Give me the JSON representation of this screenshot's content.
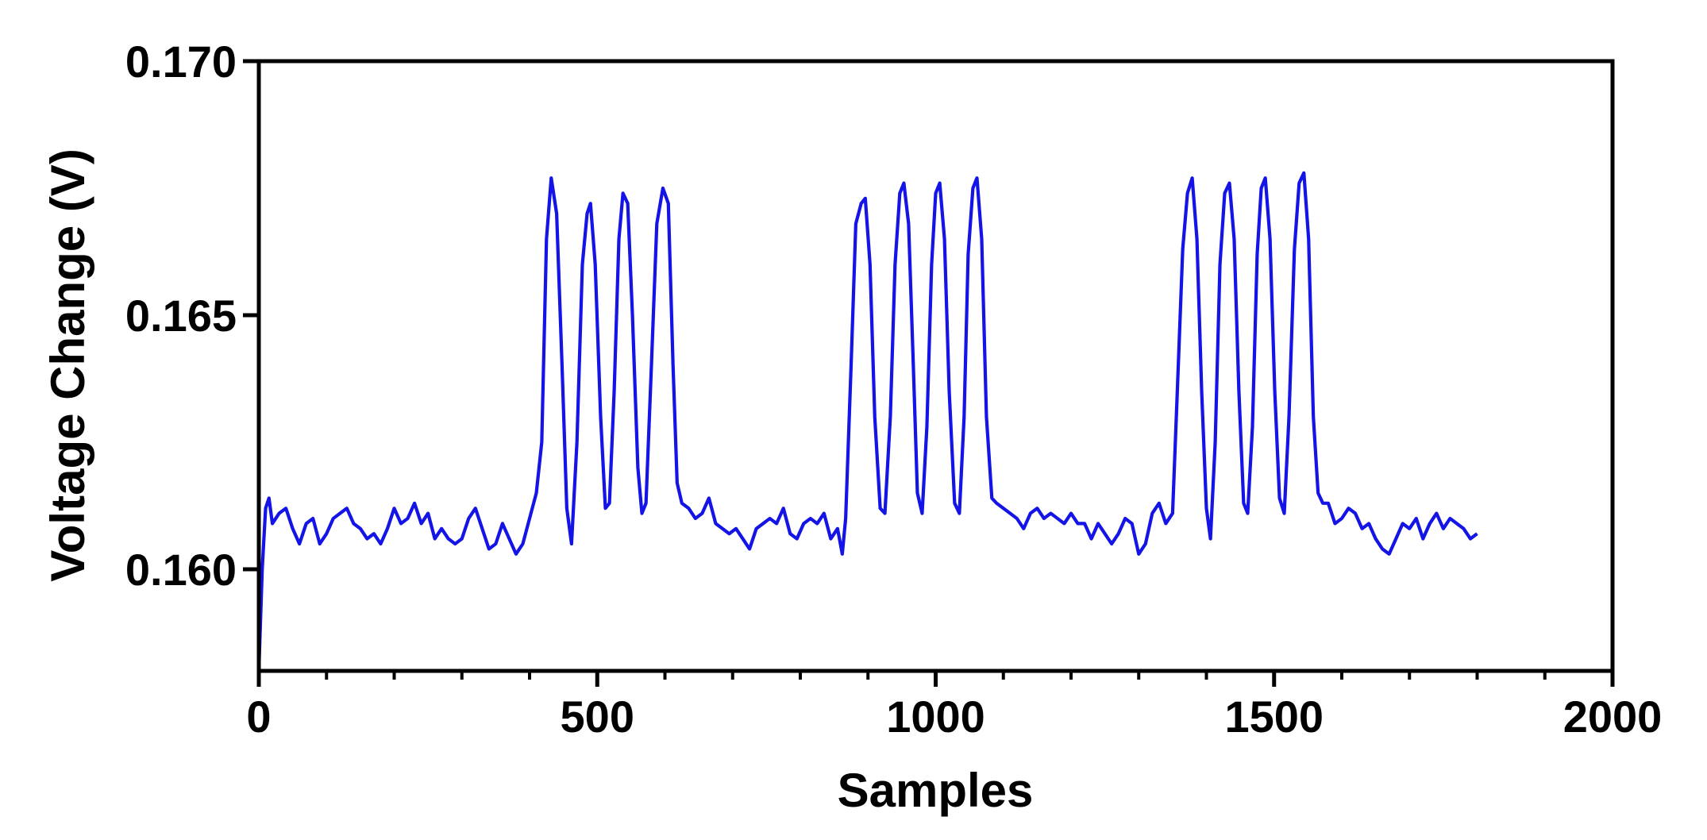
{
  "chart_data": {
    "type": "line",
    "xlabel": "Samples",
    "ylabel": "Voltage Change (V)",
    "xlim": [
      0,
      2000
    ],
    "xticks": [
      0,
      500,
      1000,
      1500,
      2000
    ],
    "xminorticks": [
      100,
      200,
      300,
      400,
      600,
      700,
      800,
      900,
      1100,
      1200,
      1300,
      1400,
      1600,
      1700,
      1800,
      1900
    ],
    "ylim": [
      0.158,
      0.17
    ],
    "yticks": [
      {
        "value": 0.16,
        "label": "0.160"
      },
      {
        "value": 0.165,
        "label": "0.165"
      },
      {
        "value": 0.17,
        "label": "0.170"
      }
    ],
    "grid": false,
    "series": [
      {
        "color": "#1414e6",
        "x": [
          0,
          5,
          10,
          15,
          20,
          30,
          40,
          50,
          60,
          70,
          80,
          90,
          100,
          110,
          120,
          130,
          140,
          150,
          160,
          170,
          180,
          190,
          200,
          210,
          220,
          230,
          240,
          250,
          260,
          270,
          280,
          290,
          300,
          310,
          320,
          330,
          340,
          350,
          360,
          370,
          380,
          390,
          400,
          410,
          418,
          425,
          432,
          440,
          448,
          455,
          462,
          470,
          478,
          485,
          490,
          497,
          505,
          512,
          518,
          525,
          532,
          538,
          545,
          552,
          560,
          566,
          572,
          580,
          588,
          597,
          605,
          612,
          618,
          625,
          635,
          645,
          655,
          665,
          675,
          685,
          695,
          705,
          715,
          725,
          735,
          745,
          755,
          765,
          775,
          785,
          795,
          805,
          815,
          825,
          835,
          845,
          855,
          862,
          867,
          875,
          882,
          890,
          896,
          903,
          910,
          918,
          925,
          933,
          940,
          947,
          953,
          960,
          967,
          973,
          980,
          987,
          994,
          1000,
          1006,
          1013,
          1020,
          1028,
          1035,
          1042,
          1048,
          1055,
          1061,
          1068,
          1075,
          1083,
          1090,
          1100,
          1110,
          1120,
          1130,
          1140,
          1150,
          1160,
          1170,
          1180,
          1190,
          1200,
          1210,
          1220,
          1230,
          1240,
          1250,
          1260,
          1270,
          1280,
          1290,
          1300,
          1310,
          1320,
          1330,
          1340,
          1350,
          1357,
          1365,
          1372,
          1379,
          1386,
          1393,
          1400,
          1406,
          1413,
          1420,
          1427,
          1434,
          1441,
          1448,
          1455,
          1461,
          1468,
          1475,
          1481,
          1487,
          1494,
          1501,
          1508,
          1515,
          1522,
          1530,
          1537,
          1544,
          1551,
          1558,
          1565,
          1572,
          1580,
          1590,
          1600,
          1610,
          1620,
          1630,
          1640,
          1650,
          1660,
          1670,
          1680,
          1690,
          1700,
          1710,
          1720,
          1730,
          1740,
          1750,
          1760,
          1770,
          1780,
          1790,
          1800
        ],
        "values": [
          0.158,
          0.16,
          0.1612,
          0.1614,
          0.1609,
          0.1611,
          0.1612,
          0.1608,
          0.1605,
          0.1609,
          0.161,
          0.1605,
          0.1607,
          0.161,
          0.1611,
          0.1612,
          0.1609,
          0.1608,
          0.1606,
          0.1607,
          0.1605,
          0.1608,
          0.1612,
          0.1609,
          0.161,
          0.1613,
          0.1609,
          0.1611,
          0.1606,
          0.1608,
          0.1606,
          0.1605,
          0.1606,
          0.161,
          0.1612,
          0.1608,
          0.1604,
          0.1605,
          0.1609,
          0.1606,
          0.1603,
          0.1605,
          0.161,
          0.1615,
          0.1625,
          0.1665,
          0.1677,
          0.167,
          0.164,
          0.1612,
          0.1605,
          0.1625,
          0.166,
          0.167,
          0.1672,
          0.166,
          0.163,
          0.1612,
          0.1613,
          0.1635,
          0.1665,
          0.1674,
          0.1672,
          0.165,
          0.162,
          0.1611,
          0.1613,
          0.164,
          0.1668,
          0.1675,
          0.1672,
          0.164,
          0.1617,
          0.1613,
          0.1612,
          0.161,
          0.1611,
          0.1614,
          0.1609,
          0.1608,
          0.1607,
          0.1608,
          0.1606,
          0.1604,
          0.1608,
          0.1609,
          0.161,
          0.1609,
          0.1612,
          0.1607,
          0.1606,
          0.1609,
          0.161,
          0.1609,
          0.1611,
          0.1606,
          0.1608,
          0.1603,
          0.161,
          0.164,
          0.1668,
          0.1672,
          0.1673,
          0.166,
          0.163,
          0.1612,
          0.1611,
          0.163,
          0.166,
          0.1674,
          0.1676,
          0.1668,
          0.164,
          0.1615,
          0.1611,
          0.1628,
          0.166,
          0.1674,
          0.1676,
          0.1665,
          0.1635,
          0.1613,
          0.1611,
          0.163,
          0.1662,
          0.1675,
          0.1677,
          0.1665,
          0.163,
          0.1614,
          0.1613,
          0.1612,
          0.1611,
          0.161,
          0.1608,
          0.1611,
          0.1612,
          0.161,
          0.1611,
          0.161,
          0.1609,
          0.1611,
          0.1609,
          0.1609,
          0.1606,
          0.1609,
          0.1607,
          0.1605,
          0.1607,
          0.161,
          0.1609,
          0.1603,
          0.1605,
          0.1611,
          0.1613,
          0.1609,
          0.1611,
          0.1635,
          0.1663,
          0.1674,
          0.1677,
          0.1665,
          0.1635,
          0.1612,
          0.1606,
          0.1625,
          0.166,
          0.1674,
          0.1676,
          0.1665,
          0.1635,
          0.1613,
          0.1611,
          0.1628,
          0.1662,
          0.1675,
          0.1677,
          0.1665,
          0.1635,
          0.1614,
          0.1611,
          0.163,
          0.1663,
          0.1676,
          0.1678,
          0.1665,
          0.163,
          0.1615,
          0.1613,
          0.1613,
          0.1609,
          0.161,
          0.1612,
          0.1611,
          0.1608,
          0.1609,
          0.1606,
          0.1604,
          0.1603,
          0.1606,
          0.1609,
          0.1608,
          0.161,
          0.1606,
          0.1609,
          0.1611,
          0.1608,
          0.161,
          0.1609,
          0.1608,
          0.1606,
          0.1607
        ]
      }
    ]
  }
}
